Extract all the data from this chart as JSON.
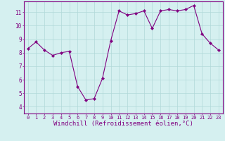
{
  "x": [
    0,
    1,
    2,
    3,
    4,
    5,
    6,
    7,
    8,
    9,
    10,
    11,
    12,
    13,
    14,
    15,
    16,
    17,
    18,
    19,
    20,
    21,
    22,
    23
  ],
  "y": [
    8.3,
    8.8,
    8.2,
    7.8,
    8.0,
    8.1,
    5.5,
    4.5,
    4.6,
    6.1,
    8.9,
    11.1,
    10.8,
    10.9,
    11.1,
    9.8,
    11.1,
    11.2,
    11.1,
    11.2,
    11.5,
    9.4,
    8.7,
    8.2
  ],
  "line_color": "#800080",
  "marker": "D",
  "marker_size": 2.2,
  "background_color": "#d5f0f0",
  "grid_color": "#b0d8d8",
  "xlabel": "Windchill (Refroidissement éolien,°C)",
  "ylabel": "",
  "xlim": [
    -0.5,
    23.5
  ],
  "ylim": [
    3.5,
    11.8
  ],
  "yticks": [
    4,
    5,
    6,
    7,
    8,
    9,
    10,
    11
  ],
  "xticks": [
    0,
    1,
    2,
    3,
    4,
    5,
    6,
    7,
    8,
    9,
    10,
    11,
    12,
    13,
    14,
    15,
    16,
    17,
    18,
    19,
    20,
    21,
    22,
    23
  ],
  "tick_color": "#800080",
  "tick_fontsize": 5.0,
  "xlabel_fontsize": 6.5,
  "xlabel_color": "#800080",
  "spine_color": "#800080"
}
